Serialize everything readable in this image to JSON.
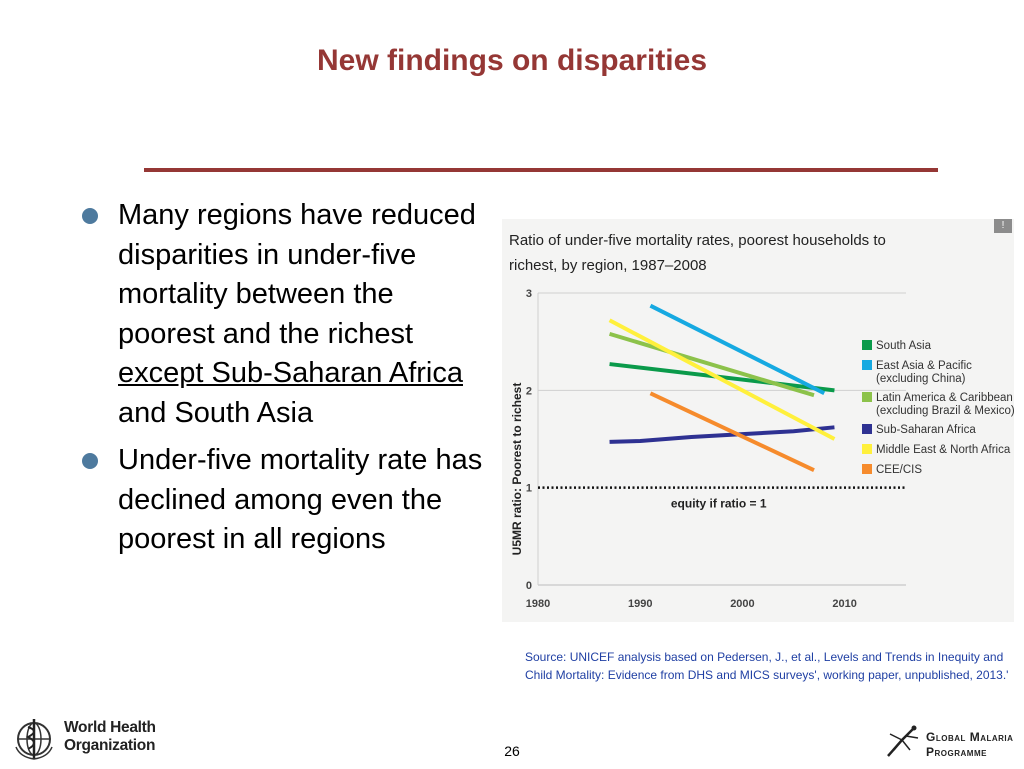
{
  "slide": {
    "title": "New findings on disparities",
    "page_number": "26",
    "source": "Source: UNICEF analysis based on Pedersen, J., et al., Levels and Trends in Inequity and Child Mortality: Evidence from DHS and MICS surveys', working paper, unpublished, 2013.'"
  },
  "bullets": {
    "b1_part1": "Many regions have reduced disparities in under-five mortality between the poorest and the richest ",
    "b1_underlined": "except Sub-Saharan Africa",
    "b1_part2": " and South Asia",
    "b2": "Under-five mortality rate has declined among even the poorest in all regions"
  },
  "logos": {
    "who_line1": "World Health",
    "who_line2": "Organization",
    "gmp_line1": "Global Malaria",
    "gmp_line2": "Programme"
  },
  "chart_data": {
    "type": "line",
    "title": "Ratio of under-five mortality rates, poorest households to richest, by region, 1987–2008",
    "xlabel": "",
    "ylabel": "U5MR ratio: Poorest to richest",
    "xlim": [
      1980,
      2016
    ],
    "ylim": [
      0,
      3
    ],
    "xticks": [
      1980,
      1990,
      2000,
      2010
    ],
    "yticks": [
      0,
      1,
      2,
      3
    ],
    "grid": true,
    "legend_position": "right",
    "series": [
      {
        "name": "South Asia",
        "color": "#0a9a4a",
        "x": [
          1987,
          2009
        ],
        "y": [
          2.27,
          2.0
        ]
      },
      {
        "name": "East Asia & Pacific (excluding China)",
        "color": "#16a9e1",
        "x": [
          1991,
          2008
        ],
        "y": [
          2.87,
          1.97
        ]
      },
      {
        "name": "Latin America & Caribbean (excluding Brazil & Mexico)",
        "color": "#8cc24a",
        "x": [
          1987,
          2007
        ],
        "y": [
          2.58,
          1.95
        ]
      },
      {
        "name": "Sub-Saharan Africa",
        "color": "#2e3192",
        "x": [
          1987,
          1990,
          1995,
          2000,
          2005,
          2009
        ],
        "y": [
          1.47,
          1.48,
          1.52,
          1.55,
          1.58,
          1.62
        ]
      },
      {
        "name": "Middle East & North Africa",
        "color": "#fff03c",
        "x": [
          1987,
          2009
        ],
        "y": [
          2.72,
          1.5
        ]
      },
      {
        "name": "CEE/CIS",
        "color": "#f68b2c",
        "x": [
          1991,
          2007
        ],
        "y": [
          1.97,
          1.18
        ]
      }
    ],
    "reference_line": {
      "y": 1,
      "label": "equity if ratio = 1"
    }
  }
}
